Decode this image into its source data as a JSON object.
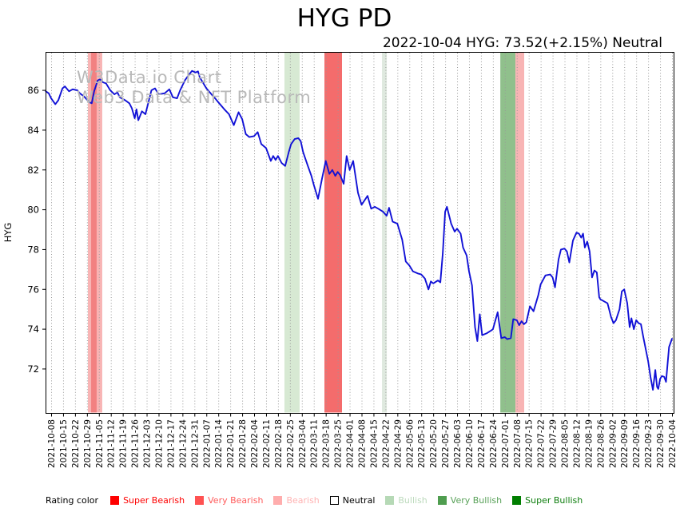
{
  "title": "HYG PD",
  "subtitle": "2022-10-04 HYG: 73.52(+2.15%) Neutral",
  "watermark": {
    "line1": "W3Data.io Chart",
    "line2": "Web3 Data & NFT Platform"
  },
  "legend": {
    "prefix": "Rating color",
    "items": [
      {
        "label": "Super Bearish",
        "swatch": "#fe0000",
        "text_color": "#fd0000",
        "border": ""
      },
      {
        "label": "Very Bearish",
        "swatch": "#ff5252",
        "text_color": "#ff5c5c",
        "border": ""
      },
      {
        "label": "Bearish",
        "swatch": "#ffadad",
        "text_color": "#ffb3b3",
        "border": ""
      },
      {
        "label": "Neutral",
        "swatch": "#ffffff",
        "text_color": "#000000",
        "border": "#000000"
      },
      {
        "label": "Bullish",
        "swatch": "#b6d9b6",
        "text_color": "#bcdabc",
        "border": ""
      },
      {
        "label": "Very Bullish",
        "swatch": "#4f9d4f",
        "text_color": "#58a158",
        "border": ""
      },
      {
        "label": "Super Bullish",
        "swatch": "#007e00",
        "text_color": "#0e7e0e",
        "border": ""
      }
    ]
  },
  "chart_data": {
    "type": "line",
    "title": "HYG PD",
    "ylabel": "HYG",
    "xlabel": "",
    "grid": "vertical-dotted",
    "grid_color": "#999999",
    "line_color": "#1111d6",
    "ylim": [
      69.79,
      87.93
    ],
    "xlim_idx": [
      -0.47,
      52.14
    ],
    "y_ticks": [
      72,
      74,
      76,
      78,
      80,
      82,
      84,
      86
    ],
    "x_tick_labels": [
      "2021-10-08",
      "2021-10-15",
      "2021-10-22",
      "2021-10-29",
      "2021-11-05",
      "2021-11-12",
      "2021-11-19",
      "2021-11-26",
      "2021-12-03",
      "2021-12-10",
      "2021-12-17",
      "2021-12-24",
      "2021-12-31",
      "2022-01-07",
      "2022-01-14",
      "2022-01-21",
      "2022-01-28",
      "2022-02-04",
      "2022-02-11",
      "2022-02-18",
      "2022-02-25",
      "2022-03-04",
      "2022-03-11",
      "2022-03-18",
      "2022-03-25",
      "2022-04-01",
      "2022-04-08",
      "2022-04-15",
      "2022-04-22",
      "2022-04-29",
      "2022-05-06",
      "2022-05-13",
      "2022-05-20",
      "2022-05-27",
      "2022-06-03",
      "2022-06-10",
      "2022-06-17",
      "2022-06-24",
      "2022-07-01",
      "2022-07-08",
      "2022-07-15",
      "2022-07-22",
      "2022-07-29",
      "2022-08-05",
      "2022-08-12",
      "2022-08-19",
      "2022-08-26",
      "2022-09-02",
      "2022-09-09",
      "2022-09-16",
      "2022-09-23",
      "2022-09-30",
      "2022-10-04"
    ],
    "last_point": {
      "date": "2022-10-04",
      "value": 73.52,
      "change_pct": "+2.15%",
      "rating": "Neutral"
    },
    "bands": [
      {
        "from_idx": 3.08,
        "to_idx": 4.28,
        "rating": "Bearish",
        "color": "#f8b4b4"
      },
      {
        "from_idx": 3.35,
        "to_idx": 3.81,
        "rating": "Very Bearish",
        "color": "#f28181"
      },
      {
        "from_idx": 19.54,
        "to_idx": 20.81,
        "rating": "Bullish",
        "color": "#d7e9d3"
      },
      {
        "from_idx": 22.89,
        "to_idx": 24.36,
        "rating": "Very Bearish",
        "color": "#f46c6c"
      },
      {
        "from_idx": 27.71,
        "to_idx": 28.11,
        "rating": "Bullish",
        "color": "#dfe9df"
      },
      {
        "from_idx": 37.62,
        "to_idx": 38.89,
        "rating": "Very Bullish",
        "color": "#90c08c"
      },
      {
        "from_idx": 38.89,
        "to_idx": 39.62,
        "rating": "Bearish",
        "color": "#f8b4b4"
      }
    ],
    "series": [
      {
        "name": "HYG",
        "points": [
          [
            -0.45,
            85.95
          ],
          [
            -0.2,
            85.85
          ],
          [
            0,
            85.6
          ],
          [
            0.35,
            85.3
          ],
          [
            0.6,
            85.5
          ],
          [
            0.95,
            86.1
          ],
          [
            1.15,
            86.2
          ],
          [
            1.5,
            85.95
          ],
          [
            1.8,
            86.05
          ],
          [
            2.2,
            86.0
          ],
          [
            2.4,
            85.85
          ],
          [
            2.75,
            85.7
          ],
          [
            3.2,
            85.4
          ],
          [
            3.4,
            85.35
          ],
          [
            3.6,
            85.95
          ],
          [
            3.9,
            86.5
          ],
          [
            4.1,
            86.55
          ],
          [
            4.35,
            86.4
          ],
          [
            4.6,
            86.35
          ],
          [
            4.95,
            86.0
          ],
          [
            5.3,
            85.8
          ],
          [
            5.55,
            85.9
          ],
          [
            5.75,
            85.65
          ],
          [
            6.2,
            85.5
          ],
          [
            6.55,
            85.35
          ],
          [
            6.76,
            85.1
          ],
          [
            7.0,
            84.6
          ],
          [
            7.15,
            85.05
          ],
          [
            7.3,
            84.5
          ],
          [
            7.6,
            84.95
          ],
          [
            7.9,
            84.8
          ],
          [
            8.4,
            86.0
          ],
          [
            8.7,
            86.1
          ],
          [
            9.0,
            85.8
          ],
          [
            9.5,
            85.85
          ],
          [
            9.9,
            86.05
          ],
          [
            10.2,
            85.65
          ],
          [
            10.55,
            85.6
          ],
          [
            10.8,
            86.0
          ],
          [
            11.2,
            86.5
          ],
          [
            11.5,
            86.75
          ],
          [
            11.8,
            86.98
          ],
          [
            12.1,
            86.9
          ],
          [
            12.3,
            86.95
          ],
          [
            12.45,
            86.65
          ],
          [
            12.8,
            86.3
          ],
          [
            13.0,
            86.1
          ],
          [
            13.5,
            85.75
          ],
          [
            13.8,
            85.55
          ],
          [
            14.0,
            85.4
          ],
          [
            14.5,
            85.05
          ],
          [
            14.9,
            84.8
          ],
          [
            15.3,
            84.25
          ],
          [
            15.7,
            84.9
          ],
          [
            16.0,
            84.55
          ],
          [
            16.3,
            83.8
          ],
          [
            16.6,
            83.65
          ],
          [
            17.0,
            83.7
          ],
          [
            17.3,
            83.9
          ],
          [
            17.6,
            83.3
          ],
          [
            18.0,
            83.1
          ],
          [
            18.4,
            82.45
          ],
          [
            18.6,
            82.7
          ],
          [
            18.8,
            82.5
          ],
          [
            19.0,
            82.7
          ],
          [
            19.3,
            82.35
          ],
          [
            19.6,
            82.2
          ],
          [
            19.9,
            82.9
          ],
          [
            20.1,
            83.3
          ],
          [
            20.4,
            83.55
          ],
          [
            20.7,
            83.6
          ],
          [
            20.9,
            83.45
          ],
          [
            21.1,
            82.9
          ],
          [
            21.5,
            82.2
          ],
          [
            21.8,
            81.7
          ],
          [
            22.0,
            81.25
          ],
          [
            22.35,
            80.55
          ],
          [
            22.7,
            81.6
          ],
          [
            23.0,
            82.45
          ],
          [
            23.3,
            81.8
          ],
          [
            23.55,
            82.0
          ],
          [
            23.8,
            81.7
          ],
          [
            24.0,
            81.9
          ],
          [
            24.2,
            81.75
          ],
          [
            24.5,
            81.3
          ],
          [
            24.75,
            82.7
          ],
          [
            25.0,
            82.0
          ],
          [
            25.3,
            82.45
          ],
          [
            25.7,
            80.85
          ],
          [
            26.0,
            80.25
          ],
          [
            26.5,
            80.7
          ],
          [
            26.8,
            80.05
          ],
          [
            27.1,
            80.15
          ],
          [
            27.4,
            80.05
          ],
          [
            27.8,
            79.9
          ],
          [
            28.1,
            79.7
          ],
          [
            28.3,
            80.1
          ],
          [
            28.6,
            79.4
          ],
          [
            29.0,
            79.3
          ],
          [
            29.4,
            78.5
          ],
          [
            29.7,
            77.4
          ],
          [
            30.0,
            77.2
          ],
          [
            30.3,
            76.9
          ],
          [
            30.7,
            76.8
          ],
          [
            31.0,
            76.75
          ],
          [
            31.3,
            76.55
          ],
          [
            31.6,
            76.0
          ],
          [
            31.8,
            76.4
          ],
          [
            32.0,
            76.3
          ],
          [
            32.4,
            76.45
          ],
          [
            32.6,
            76.35
          ],
          [
            32.8,
            77.8
          ],
          [
            33.0,
            79.9
          ],
          [
            33.15,
            80.15
          ],
          [
            33.5,
            79.3
          ],
          [
            33.8,
            78.9
          ],
          [
            34.0,
            79.05
          ],
          [
            34.3,
            78.8
          ],
          [
            34.5,
            78.1
          ],
          [
            34.8,
            77.7
          ],
          [
            35.0,
            76.9
          ],
          [
            35.25,
            76.2
          ],
          [
            35.5,
            74.1
          ],
          [
            35.7,
            73.4
          ],
          [
            35.9,
            74.75
          ],
          [
            36.1,
            73.7
          ],
          [
            36.5,
            73.8
          ],
          [
            36.9,
            73.95
          ],
          [
            37.0,
            74.0
          ],
          [
            37.4,
            74.85
          ],
          [
            37.7,
            73.55
          ],
          [
            38.0,
            73.6
          ],
          [
            38.2,
            73.5
          ],
          [
            38.5,
            73.55
          ],
          [
            38.7,
            74.5
          ],
          [
            39.0,
            74.45
          ],
          [
            39.2,
            74.2
          ],
          [
            39.4,
            74.4
          ],
          [
            39.6,
            74.25
          ],
          [
            39.8,
            74.35
          ],
          [
            40.1,
            75.15
          ],
          [
            40.4,
            74.9
          ],
          [
            40.8,
            75.7
          ],
          [
            41.0,
            76.25
          ],
          [
            41.4,
            76.7
          ],
          [
            41.8,
            76.75
          ],
          [
            42.0,
            76.6
          ],
          [
            42.2,
            76.1
          ],
          [
            42.5,
            77.5
          ],
          [
            42.7,
            78.0
          ],
          [
            43.0,
            78.05
          ],
          [
            43.2,
            77.9
          ],
          [
            43.4,
            77.35
          ],
          [
            43.7,
            78.45
          ],
          [
            44.0,
            78.85
          ],
          [
            44.2,
            78.8
          ],
          [
            44.4,
            78.6
          ],
          [
            44.55,
            78.8
          ],
          [
            44.7,
            78.1
          ],
          [
            44.9,
            78.4
          ],
          [
            45.1,
            77.9
          ],
          [
            45.3,
            76.6
          ],
          [
            45.5,
            76.95
          ],
          [
            45.7,
            76.85
          ],
          [
            45.9,
            75.6
          ],
          [
            46.0,
            75.5
          ],
          [
            46.3,
            75.4
          ],
          [
            46.6,
            75.3
          ],
          [
            46.9,
            74.6
          ],
          [
            47.1,
            74.3
          ],
          [
            47.3,
            74.45
          ],
          [
            47.6,
            75.0
          ],
          [
            47.8,
            75.9
          ],
          [
            48.0,
            76.0
          ],
          [
            48.25,
            75.3
          ],
          [
            48.45,
            74.1
          ],
          [
            48.6,
            74.55
          ],
          [
            48.8,
            74.0
          ],
          [
            49.0,
            74.45
          ],
          [
            49.2,
            74.3
          ],
          [
            49.4,
            74.25
          ],
          [
            49.6,
            73.6
          ],
          [
            49.8,
            73.0
          ],
          [
            50.0,
            72.4
          ],
          [
            50.2,
            71.6
          ],
          [
            50.4,
            70.95
          ],
          [
            50.6,
            71.95
          ],
          [
            50.75,
            71.1
          ],
          [
            50.85,
            71.0
          ],
          [
            51.0,
            71.5
          ],
          [
            51.15,
            71.65
          ],
          [
            51.35,
            71.6
          ],
          [
            51.5,
            71.35
          ],
          [
            51.75,
            73.1
          ],
          [
            52.0,
            73.52
          ]
        ]
      }
    ]
  }
}
